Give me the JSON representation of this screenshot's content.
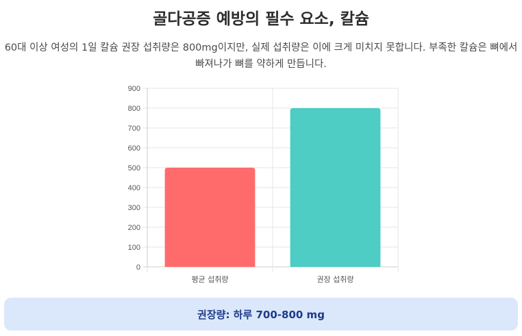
{
  "page": {
    "title": "골다공증 예방의 필수 요소, 칼슘",
    "description": "60대 이상 여성의 1일 칼슘 권장 섭취량은 800mg이지만, 실제 섭취량은 이에 크게 미치지 못합니다. 부족한 칼슘은 뼈에서 빠져나가 뼈를 약하게 만듭니다.",
    "recommendation": "권장량: 하루 700-800 mg"
  },
  "chart_data": {
    "type": "bar",
    "categories": [
      "평균 섭취량",
      "권장 섭취량"
    ],
    "values": [
      500,
      800
    ],
    "colors": [
      "#ff6b6b",
      "#4ecdc4"
    ],
    "ylim": [
      0,
      900
    ],
    "yticks": [
      0,
      100,
      200,
      300,
      400,
      500,
      600,
      700,
      800,
      900
    ],
    "grid": true,
    "legend": "none"
  }
}
